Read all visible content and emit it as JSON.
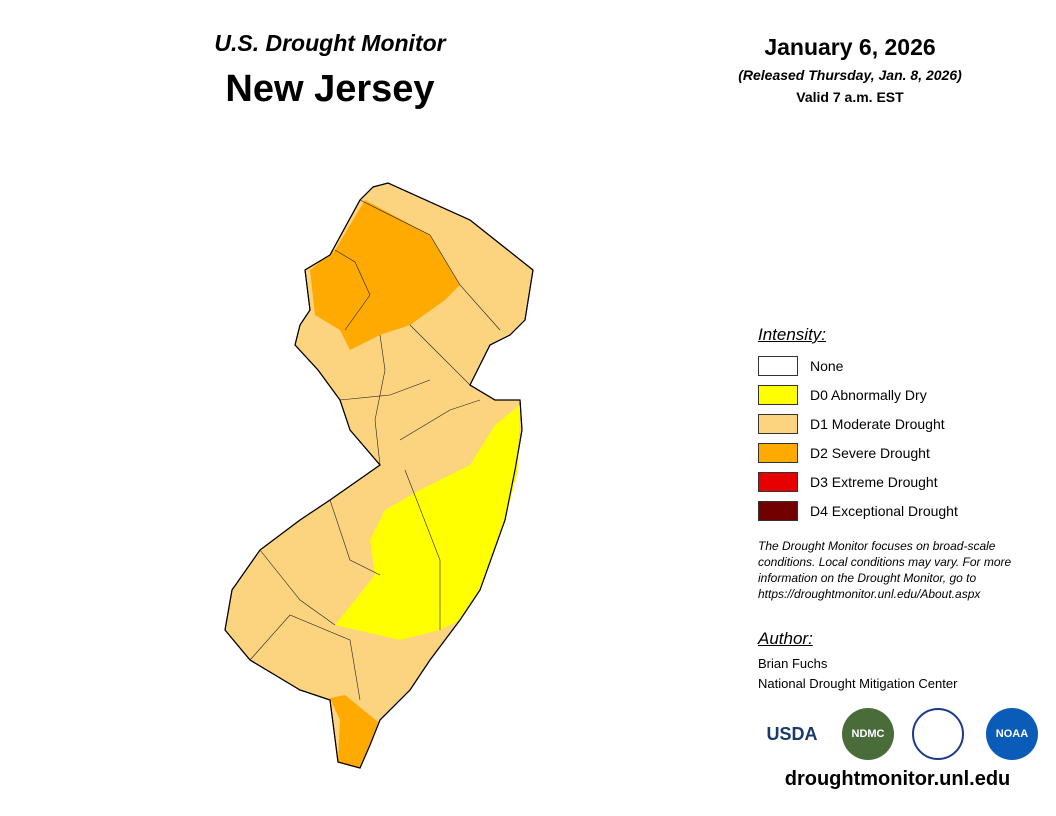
{
  "header": {
    "title": "U.S. Drought Monitor",
    "region": "New Jersey",
    "date": "January 6, 2026",
    "released": "(Released Thursday, Jan. 8, 2026)",
    "valid": "Valid 7 a.m. EST"
  },
  "legend": {
    "title": "Intensity:",
    "items": [
      {
        "label": "None",
        "color": "#ffffff"
      },
      {
        "label": "D0 Abnormally Dry",
        "color": "#ffff00"
      },
      {
        "label": "D1 Moderate Drought",
        "color": "#fcd37f"
      },
      {
        "label": "D2 Severe Drought",
        "color": "#ffaa00"
      },
      {
        "label": "D3 Extreme Drought",
        "color": "#e60000"
      },
      {
        "label": "D4 Exceptional Drought",
        "color": "#730000"
      }
    ]
  },
  "note": "The Drought Monitor focuses on broad-scale conditions. Local conditions may vary. For more information on the Drought Monitor, go to https://droughtmonitor.unl.edu/About.aspx",
  "author": {
    "heading": "Author:",
    "name": "Brian Fuchs",
    "org": "National Drought Mitigation Center"
  },
  "logos": [
    "USDA",
    "NDMC",
    "NOAA"
  ],
  "url": "droughtmonitor.unl.edu"
}
